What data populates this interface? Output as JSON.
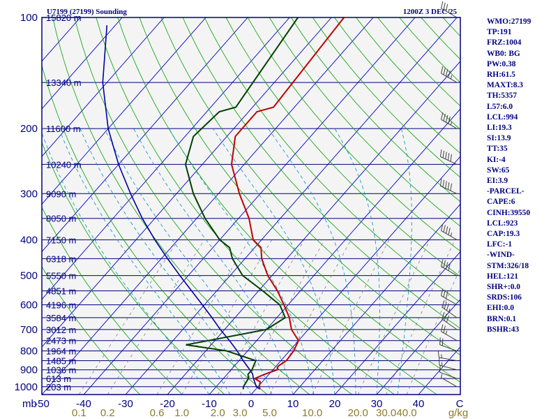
{
  "title_left": "U7199 (27199) Sounding",
  "title_right": "1200Z  3 DEC 25",
  "colors": {
    "background": "#ffffff",
    "plot_background": "#f4f4f4",
    "frame": "#000080",
    "isobar": "#000080",
    "isotherm": "#0000c8",
    "dry_adiabat": "#00a000",
    "moist_adiabat": "#0090c0",
    "mixing_ratio": "#707070",
    "temperature": "#c00000",
    "dewpoint": "#004000",
    "parcel": "#0000a0",
    "wind_barb": "#404040",
    "text": "#000080",
    "mixing_ratio_text": "#8c7a2a"
  },
  "chart_data": {
    "type": "skew-t log-p sounding",
    "station": "U7199 (27199)",
    "time": "1200Z 3 DEC 25",
    "y_axis": {
      "label": "mb",
      "scale": "log",
      "range": [
        1050,
        100
      ],
      "ticks": [
        "100",
        "200",
        "300",
        "400",
        "500",
        "600",
        "700",
        "800",
        "900",
        "1000"
      ]
    },
    "x_axis": {
      "label": "C",
      "range": [
        -50,
        50
      ],
      "ticks": [
        "-50",
        "-40",
        "-30",
        "-20",
        "-10",
        "0",
        "10",
        "20",
        "30",
        "40"
      ]
    },
    "mixing_ratio_axis": {
      "label": "g/kg",
      "ticks": [
        "0.1",
        "0.2",
        "0.6",
        "1.0",
        "2.0",
        "3.0",
        "5.0",
        "10.0",
        "20.0",
        "30.0",
        "40.0"
      ]
    },
    "height_labels": [
      {
        "p": 100,
        "text": "15820 m"
      },
      {
        "p": 150,
        "text": "13340 m"
      },
      {
        "p": 200,
        "text": "11600 m"
      },
      {
        "p": 250,
        "text": "10240 m"
      },
      {
        "p": 300,
        "text": "9090 m"
      },
      {
        "p": 350,
        "text": "8050 m"
      },
      {
        "p": 400,
        "text": "7150 m"
      },
      {
        "p": 450,
        "text": "6318 m"
      },
      {
        "p": 500,
        "text": "5550 m"
      },
      {
        "p": 550,
        "text": "4851 m"
      },
      {
        "p": 600,
        "text": "4196 m"
      },
      {
        "p": 650,
        "text": "3584 m"
      },
      {
        "p": 700,
        "text": "3012 m"
      },
      {
        "p": 750,
        "text": "2473 m"
      },
      {
        "p": 800,
        "text": "1964 m"
      },
      {
        "p": 850,
        "text": "1485 m"
      },
      {
        "p": 900,
        "text": "1036 m"
      },
      {
        "p": 950,
        "text": "613 m"
      },
      {
        "p": 1000,
        "text": "203 m"
      }
    ],
    "temperature": [
      {
        "p": 1016,
        "t": 1.0
      },
      {
        "p": 1000,
        "t": 0.3
      },
      {
        "p": 970,
        "t": -0.5
      },
      {
        "p": 950,
        "t": -2.5
      },
      {
        "p": 925,
        "t": -1.0
      },
      {
        "p": 900,
        "t": 1.0
      },
      {
        "p": 880,
        "t": 0.5
      },
      {
        "p": 850,
        "t": 1.3
      },
      {
        "p": 800,
        "t": 1.0
      },
      {
        "p": 750,
        "t": 0.0
      },
      {
        "p": 700,
        "t": -4.0
      },
      {
        "p": 650,
        "t": -7.0
      },
      {
        "p": 600,
        "t": -11.0
      },
      {
        "p": 550,
        "t": -15.5
      },
      {
        "p": 500,
        "t": -21.0
      },
      {
        "p": 450,
        "t": -26.0
      },
      {
        "p": 420,
        "t": -28.5
      },
      {
        "p": 400,
        "t": -32.0
      },
      {
        "p": 350,
        "t": -37.5
      },
      {
        "p": 300,
        "t": -45.0
      },
      {
        "p": 250,
        "t": -53.0
      },
      {
        "p": 210,
        "t": -58.0
      },
      {
        "p": 180,
        "t": -58.0
      },
      {
        "p": 175,
        "t": -55.0
      },
      {
        "p": 100,
        "t": -57.0
      }
    ],
    "dewpoint": [
      {
        "p": 1016,
        "td": -3.0
      },
      {
        "p": 1000,
        "td": -3.5
      },
      {
        "p": 950,
        "td": -4.0
      },
      {
        "p": 925,
        "td": -5.0
      },
      {
        "p": 900,
        "td": -5.0
      },
      {
        "p": 850,
        "td": -6.0
      },
      {
        "p": 800,
        "td": -15.0
      },
      {
        "p": 770,
        "td": -26.0
      },
      {
        "p": 700,
        "td": -10.0
      },
      {
        "p": 650,
        "td": -8.0
      },
      {
        "p": 600,
        "td": -12.0
      },
      {
        "p": 550,
        "td": -19.0
      },
      {
        "p": 500,
        "td": -27.0
      },
      {
        "p": 450,
        "td": -33.0
      },
      {
        "p": 420,
        "td": -36.0
      },
      {
        "p": 400,
        "td": -40.0
      },
      {
        "p": 350,
        "td": -48.0
      },
      {
        "p": 300,
        "td": -56.0
      },
      {
        "p": 250,
        "td": -64.0
      },
      {
        "p": 210,
        "td": -68.0
      },
      {
        "p": 180,
        "td": -67.0
      },
      {
        "p": 175,
        "td": -64.0
      },
      {
        "p": 100,
        "td": -68.0
      }
    ],
    "parcel": [
      {
        "p": 1016,
        "t": 1.0
      },
      {
        "p": 1000,
        "t": -0.4
      },
      {
        "p": 950,
        "t": -2.8
      },
      {
        "p": 923,
        "t": -4.0
      },
      {
        "p": 900,
        "t": -5.5
      },
      {
        "p": 850,
        "t": -9.0
      },
      {
        "p": 800,
        "t": -12.5
      },
      {
        "p": 750,
        "t": -16.5
      },
      {
        "p": 700,
        "t": -21.0
      },
      {
        "p": 650,
        "t": -25.5
      },
      {
        "p": 600,
        "t": -30.5
      },
      {
        "p": 550,
        "t": -36.0
      },
      {
        "p": 500,
        "t": -42.0
      },
      {
        "p": 450,
        "t": -48.5
      },
      {
        "p": 400,
        "t": -55.5
      },
      {
        "p": 350,
        "t": -63.0
      },
      {
        "p": 300,
        "t": -71.0
      },
      {
        "p": 250,
        "t": -80.0
      },
      {
        "p": 200,
        "t": -90.0
      },
      {
        "p": 150,
        "t": -101.0
      },
      {
        "p": 105,
        "t": -112.0
      }
    ],
    "wind_barbs": [
      {
        "p": 1000,
        "dir": 300,
        "spd": 5
      },
      {
        "p": 950,
        "dir": 290,
        "spd": 10
      },
      {
        "p": 900,
        "dir": 285,
        "spd": 15
      },
      {
        "p": 850,
        "dir": 280,
        "spd": 15
      },
      {
        "p": 800,
        "dir": 290,
        "spd": 20
      },
      {
        "p": 750,
        "dir": 300,
        "spd": 25
      },
      {
        "p": 700,
        "dir": 305,
        "spd": 30
      },
      {
        "p": 650,
        "dir": 305,
        "spd": 35
      },
      {
        "p": 600,
        "dir": 300,
        "spd": 30
      },
      {
        "p": 500,
        "dir": 300,
        "spd": 40
      },
      {
        "p": 400,
        "dir": 300,
        "spd": 45
      },
      {
        "p": 300,
        "dir": 295,
        "spd": 50
      },
      {
        "p": 250,
        "dir": 295,
        "spd": 50
      },
      {
        "p": 200,
        "dir": 300,
        "spd": 45
      },
      {
        "p": 150,
        "dir": 300,
        "spd": 45
      },
      {
        "p": 100,
        "dir": 300,
        "spd": 35
      }
    ]
  },
  "indices": [
    "WMO:27199",
    "TP:191",
    "FRZ:1004",
    "WB0: BG",
    "PW:0.38",
    "RH:61.5",
    "MAXT:8.3",
    "TH:5357",
    "L57:6.0",
    "LCL:994",
    "LI:19.3",
    "SI:13.9",
    "TT:35",
    "KI:-4",
    "SW:65",
    "EI:3.9",
    "-PARCEL-",
    "CAPE:6",
    "CINH:39550",
    "LCL:923",
    "CAP:19.3",
    "LFC:-1",
    "-WIND-",
    "STM:326/18",
    "HEL:121",
    "SHR+:0.0",
    "SRDS:106",
    "EHI:0.0",
    "BRN:0.1",
    "BSHR:43"
  ]
}
